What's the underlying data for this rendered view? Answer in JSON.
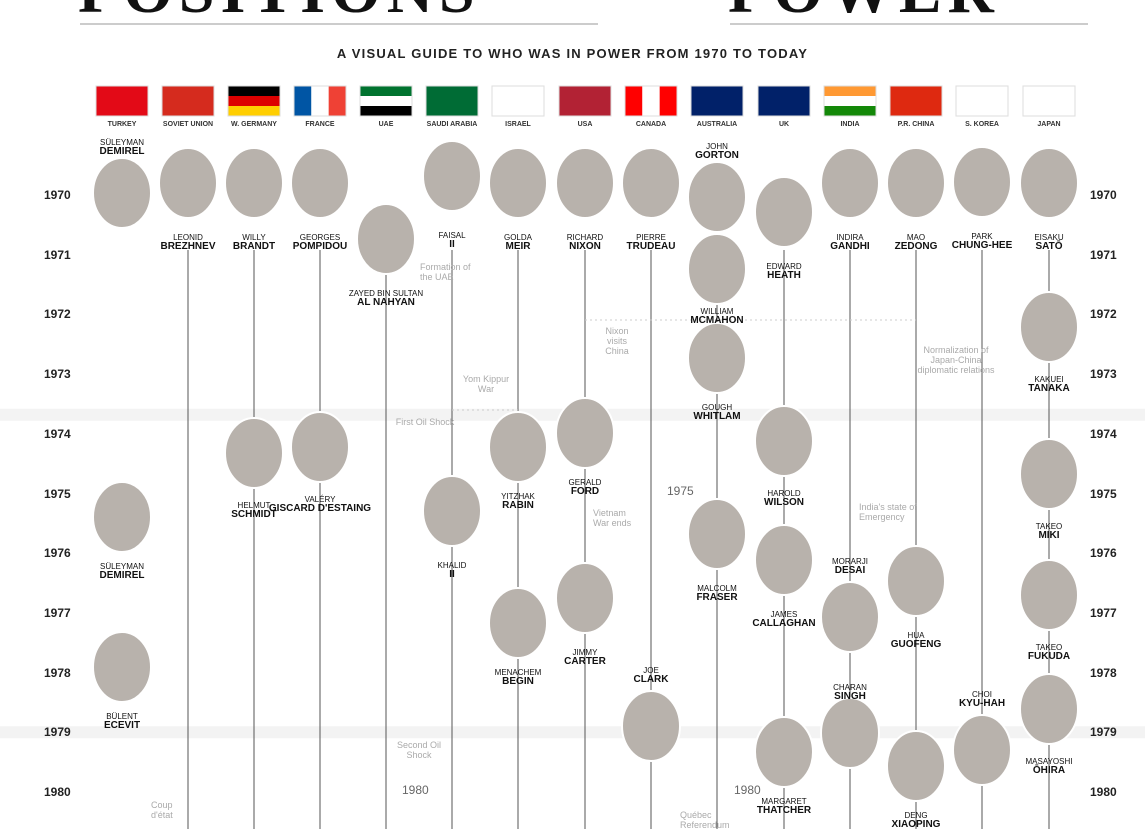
{
  "header": {
    "title_left": "POSITIONS",
    "title_right": "POWER",
    "subtitle": "A VISUAL GUIDE TO WHO WAS IN POWER FROM 1970 TO TODAY"
  },
  "countries": [
    "TURKEY",
    "SOVIET UNION",
    "W. GERMANY",
    "FRANCE",
    "UAE",
    "SAUDI ARABIA",
    "ISRAEL",
    "USA",
    "CANADA",
    "AUSTRALIA",
    "UK",
    "INDIA",
    "P.R. CHINA",
    "S. KOREA",
    "JAPAN"
  ],
  "years": [
    1970,
    1971,
    1972,
    1973,
    1974,
    1975,
    1976,
    1977,
    1978,
    1979,
    1980
  ],
  "leaders": [
    {
      "first": "SÜLEYMAN",
      "last": "DEMIREL"
    },
    {
      "first": "LEONID",
      "last": "BREZHNEV"
    },
    {
      "first": "WILLY",
      "last": "BRANDT"
    },
    {
      "first": "GEORGES",
      "last": "POMPIDOU"
    },
    {
      "first": "ZAYED BIN SULTAN",
      "last": "AL NAHYAN"
    },
    {
      "first": "FAISAL",
      "last": "II"
    },
    {
      "first": "GOLDA",
      "last": "MEIR"
    },
    {
      "first": "RICHARD",
      "last": "NIXON"
    },
    {
      "first": "PIERRE",
      "last": "TRUDEAU"
    },
    {
      "first": "JOHN",
      "last": "GORTON"
    },
    {
      "first": "EDWARD",
      "last": "HEATH"
    },
    {
      "first": "INDIRA",
      "last": "GANDHI"
    },
    {
      "first": "MAO",
      "last": "ZEDONG"
    },
    {
      "first": "PARK",
      "last": "CHUNG-HEE"
    },
    {
      "first": "EISAKU",
      "last": "SATŌ"
    },
    {
      "first": "WILLIAM",
      "last": "MCMAHON"
    },
    {
      "first": "KAKUEI",
      "last": "TANAKA"
    },
    {
      "first": "GOUGH",
      "last": "WHITLAM"
    },
    {
      "first": "HELMUT",
      "last": "SCHMIDT"
    },
    {
      "first": "VALÉRY",
      "last": "GISCARD D'ESTAING"
    },
    {
      "first": "YITZHAK",
      "last": "RABIN"
    },
    {
      "first": "GERALD",
      "last": "FORD"
    },
    {
      "first": "HAROLD",
      "last": "WILSON"
    },
    {
      "first": "TAKEO",
      "last": "MIKI"
    },
    {
      "first": "KHALID",
      "last": "II"
    },
    {
      "first": "SÜLEYMAN",
      "last": "DEMIREL"
    },
    {
      "first": "MORARJI",
      "last": "DESAI"
    },
    {
      "first": "MALCOLM",
      "last": "FRASER"
    },
    {
      "first": "JAMES",
      "last": "CALLAGHAN"
    },
    {
      "first": "HUA",
      "last": "GUOFENG"
    },
    {
      "first": "JIMMY",
      "last": "CARTER"
    },
    {
      "first": "TAKEO",
      "last": "FUKUDA"
    },
    {
      "first": "MENACHEM",
      "last": "BEGIN"
    },
    {
      "first": "JOE",
      "last": "CLARK"
    },
    {
      "first": "CHARAN",
      "last": "SINGH"
    },
    {
      "first": "CHOI",
      "last": "KYU-HAH"
    },
    {
      "first": "BÜLENT",
      "last": "ECEVIT"
    },
    {
      "first": "MASAYOSHI",
      "last": "ŌHIRA"
    },
    {
      "first": "MARGARET",
      "last": "THATCHER"
    },
    {
      "first": "DENG",
      "last": "XIAOPING"
    }
  ],
  "events": [
    "Formation of the UAE",
    "Nixon visits China",
    "Yom Kippur War",
    "First Oil Shock",
    "Normalization of Japan-China diplomatic relations",
    "Vietnam War ends",
    "India's state of Emergency",
    "Second Oil Shock",
    "Coup d'état",
    "Québec Referendum",
    "1975",
    "1980",
    "1980"
  ]
}
